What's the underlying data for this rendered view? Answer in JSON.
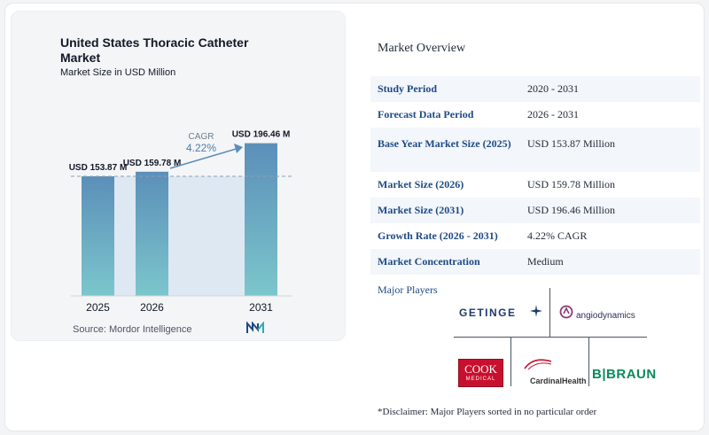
{
  "chart": {
    "title": "United States Thoracic Catheter Market",
    "subtitle": "Market Size in USD Million",
    "source": "Source:  Mordor Intelligence",
    "cagr_label": "CAGR",
    "cagr_value": "4.22%"
  },
  "chart_data": {
    "type": "bar",
    "categories": [
      "2025",
      "2026",
      "2031"
    ],
    "values": [
      153.87,
      159.78,
      196.46
    ],
    "value_labels": [
      "USD 153.87 M",
      "USD 159.78 M",
      "USD 196.46 M"
    ],
    "title": "United States Thoracic Catheter Market",
    "subtitle": "Market Size in USD Million",
    "xlabel": "",
    "ylabel": "",
    "annotation": "CAGR 4.22%",
    "colors": {
      "bar_top": "#5b8fb9",
      "bar_bottom": "#7cc6cc",
      "band": "#dde8f2",
      "dashed_line": "#8ca0b3",
      "arrow": "#5b8fb9"
    }
  },
  "overview": {
    "title": "Market Overview",
    "rows": [
      {
        "label": "Study Period",
        "value": "2020 - 2031"
      },
      {
        "label": "Forecast Data Period",
        "value": "2026 - 2031"
      },
      {
        "label": "Base Year Market Size (2025)",
        "value": "USD 153.87 Million"
      },
      {
        "label": "Market Size (2026)",
        "value": "USD 159.78 Million"
      },
      {
        "label": "Market Size (2031)",
        "value": "USD 196.46 Million"
      },
      {
        "label": "Growth Rate (2026 - 2031)",
        "value": "4.22% CAGR"
      },
      {
        "label": "Market Concentration",
        "value": "Medium"
      }
    ]
  },
  "players": {
    "title": "Major Players",
    "getinge": "GETINGE",
    "angiodynamics": "angiodynamics",
    "cook_top": "COOK",
    "cook_bottom": "MEDICAL",
    "cardinal": "CardinalHealth",
    "braun": "B|BRAUN",
    "disclaimer": "*Disclaimer: Major Players sorted in no particular order"
  },
  "colors": {
    "label_blue": "#1e4a86",
    "row_alt": "#f3f6fa"
  }
}
